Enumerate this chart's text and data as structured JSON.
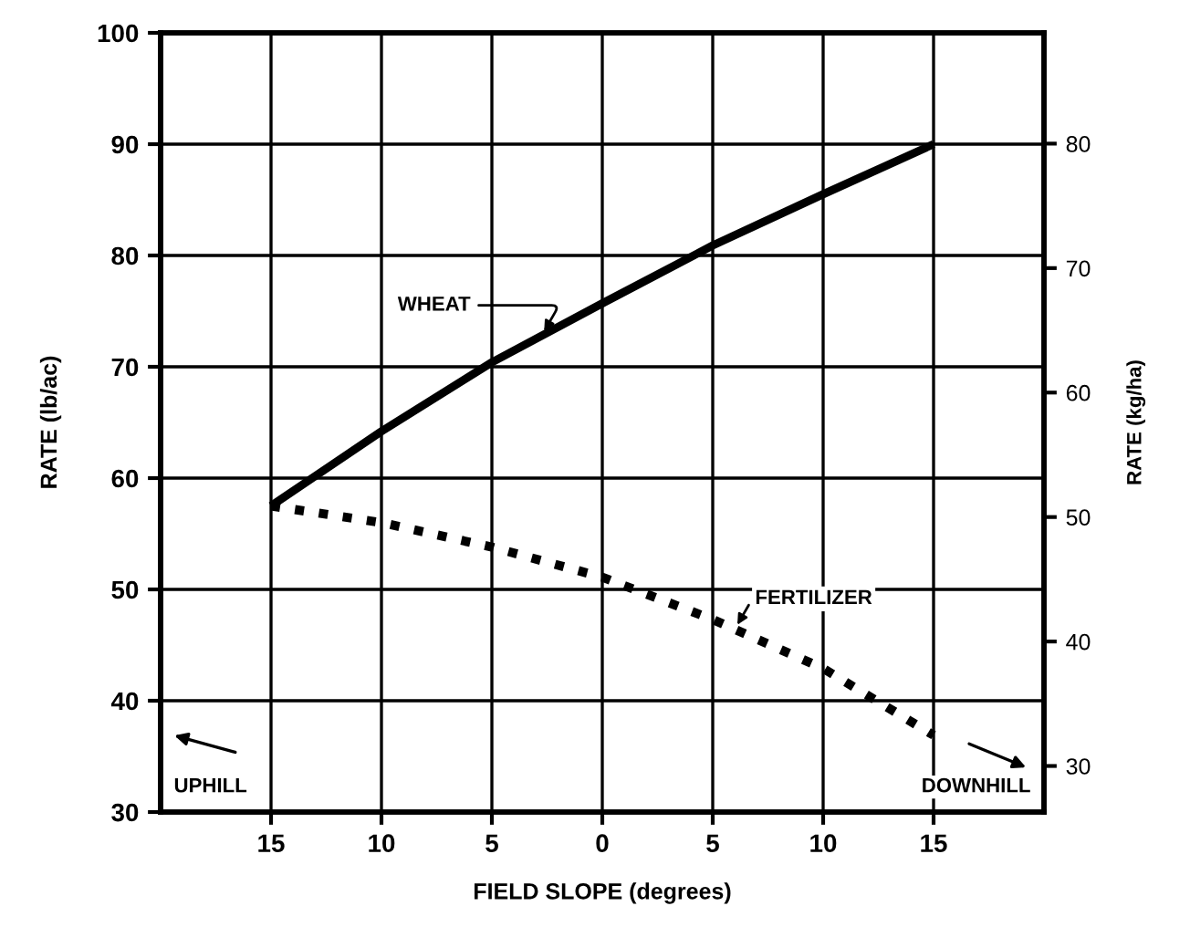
{
  "chart_data": {
    "type": "line",
    "xlabel": "FIELD SLOPE (degrees)",
    "ylabel": "RATE (lb/ac)",
    "y2label": "RATE (kg/ha)",
    "x": [
      -15,
      -10,
      -5,
      0,
      5,
      10,
      15
    ],
    "series": [
      {
        "name": "WHEAT",
        "color": "#000000",
        "line_style": "solid",
        "values": [
          57.5,
          64.2,
          70.4,
          75.7,
          80.9,
          85.5,
          90.0
        ]
      },
      {
        "name": "FERTILIZER",
        "color": "#000000",
        "line_style": "dotted",
        "values": [
          57.5,
          56.0,
          53.8,
          51.1,
          47.3,
          42.9,
          36.9
        ]
      }
    ],
    "xlim": [
      -20,
      20
    ],
    "xticks": [
      {
        "value": -15,
        "label": "15"
      },
      {
        "value": -10,
        "label": "10"
      },
      {
        "value": -5,
        "label": "5"
      },
      0,
      5,
      10,
      15
    ],
    "ylim": [
      30,
      100
    ],
    "yticks": [
      30,
      40,
      50,
      60,
      70,
      80,
      90,
      100
    ],
    "y2lim": [
      26.3,
      88.9
    ],
    "y2ticks": [
      30,
      40,
      50,
      60,
      70,
      80
    ],
    "annotations": [
      "UPHILL",
      "DOWNHILL"
    ],
    "grid": true,
    "marker": "none"
  }
}
